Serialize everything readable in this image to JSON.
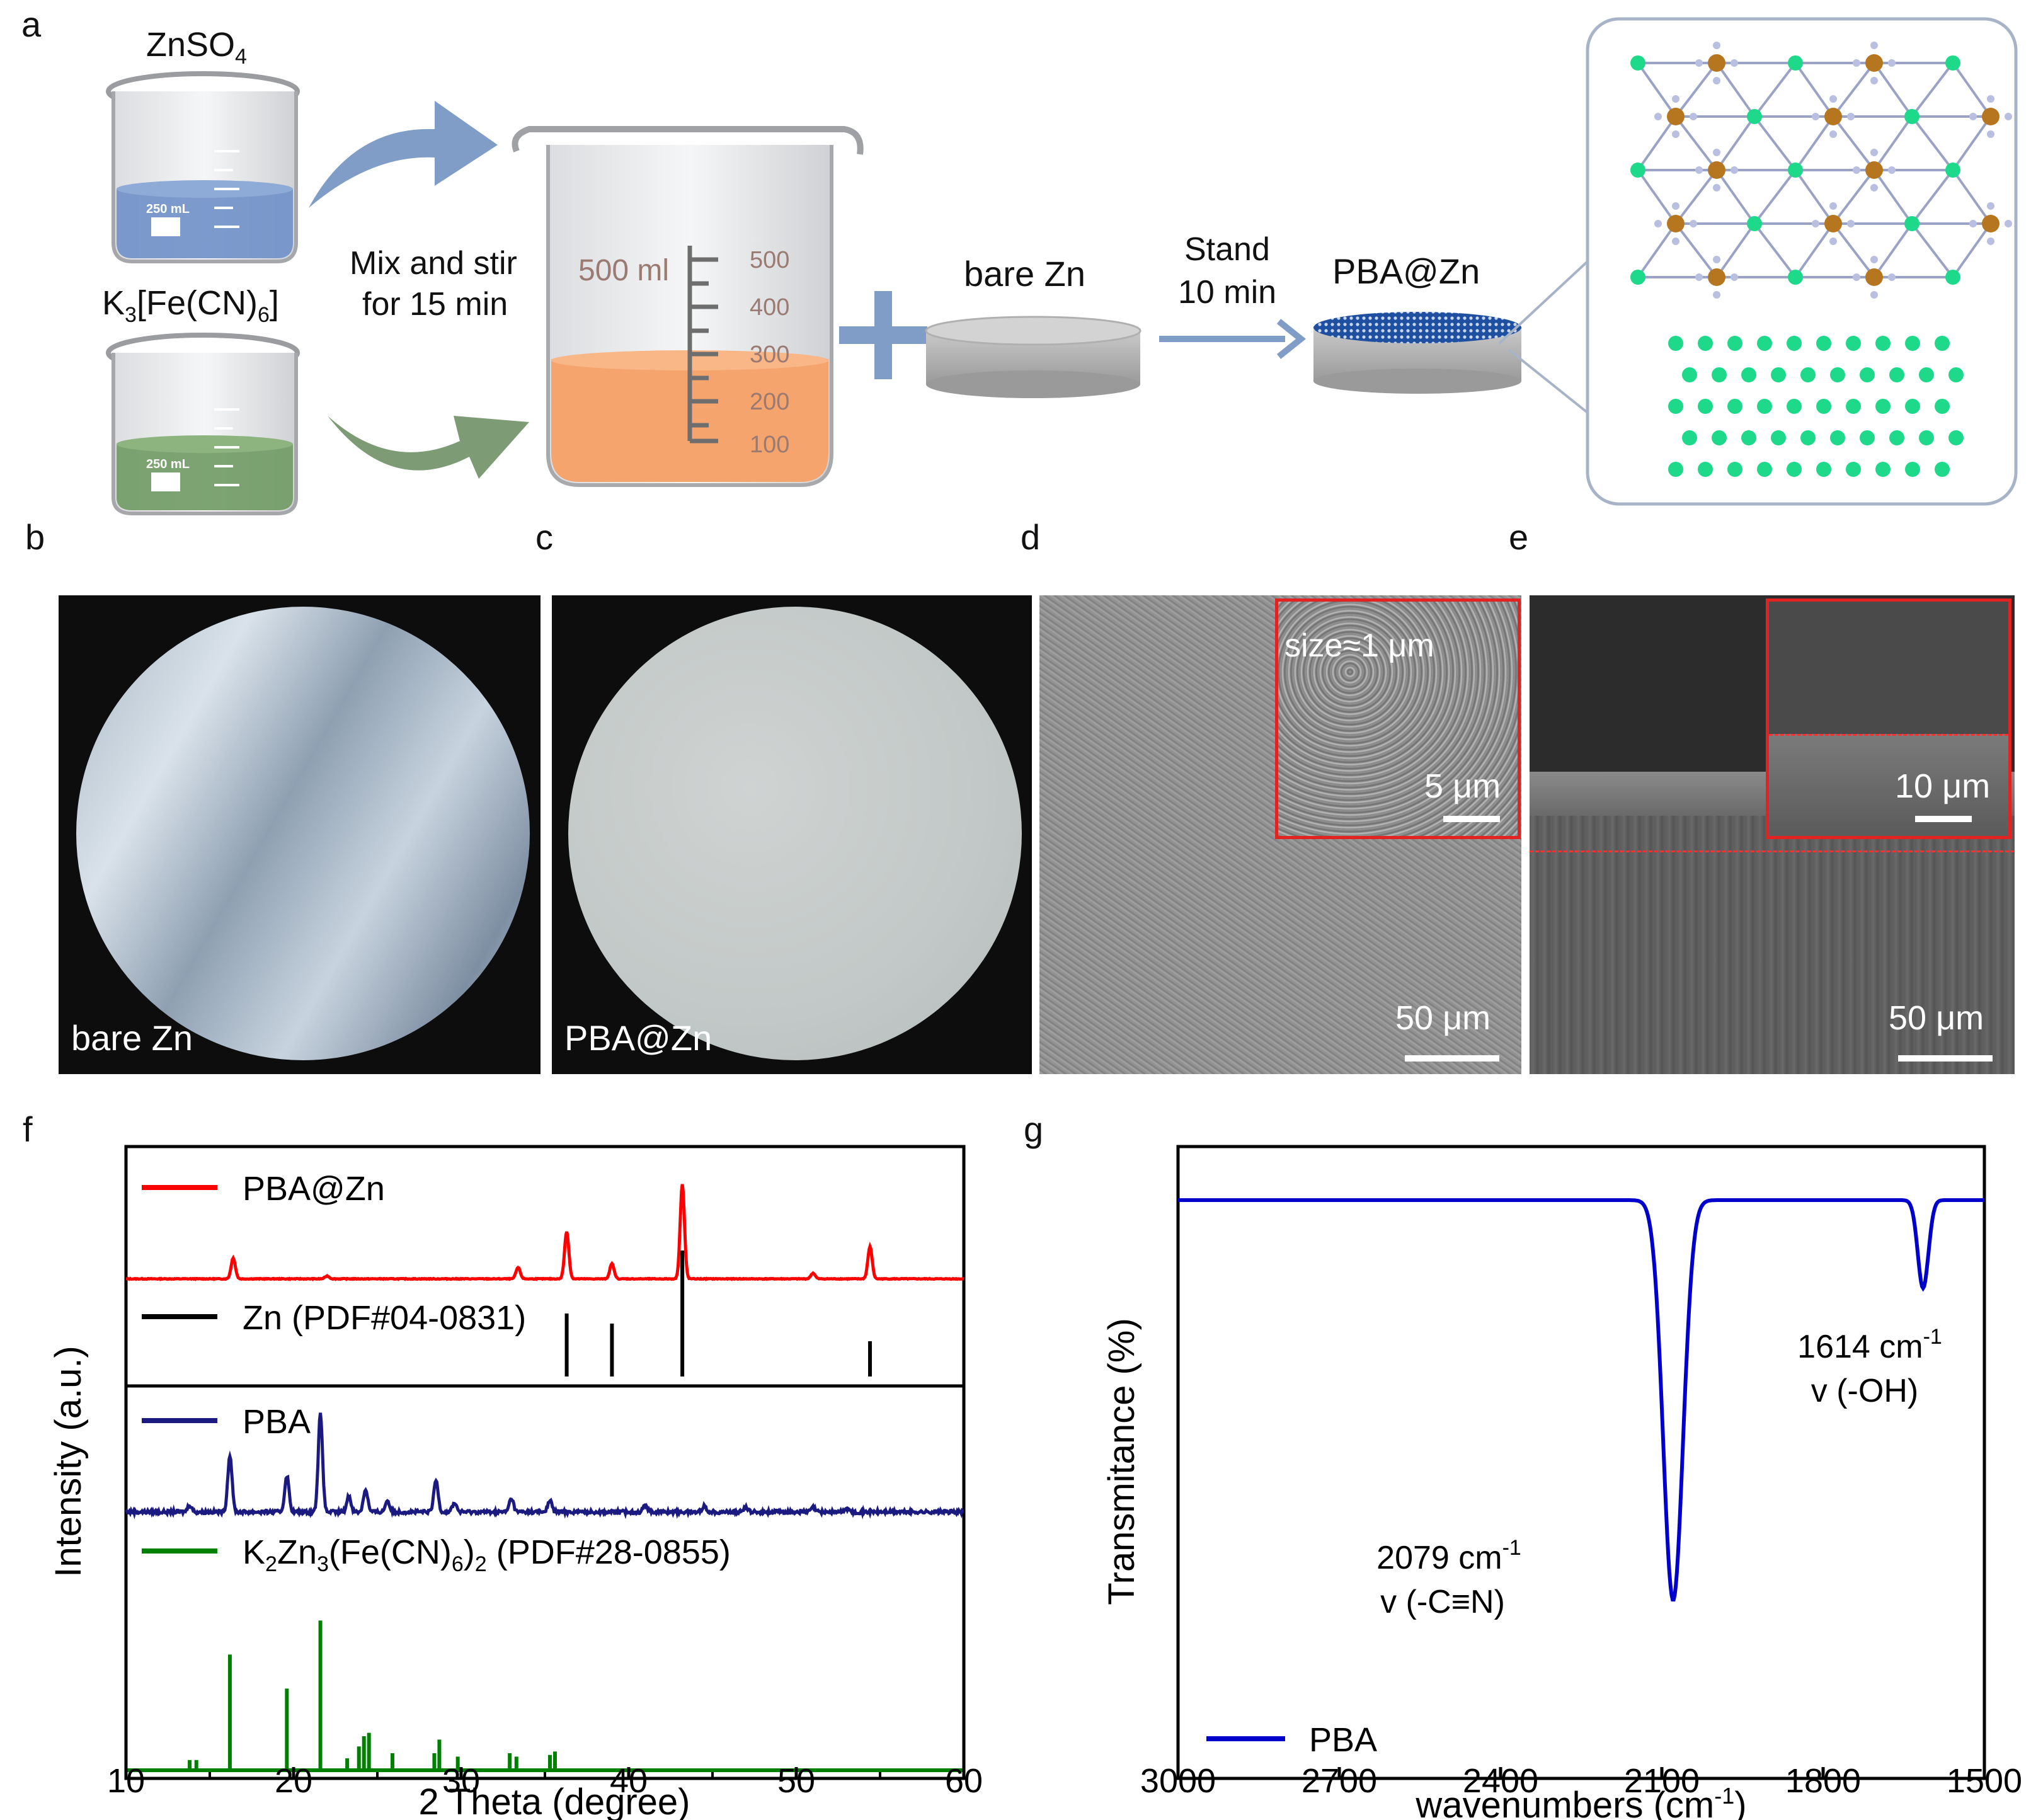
{
  "panels": {
    "a": "a",
    "b": "b",
    "c": "c",
    "d": "d",
    "e": "e",
    "f": "f",
    "g": "g"
  },
  "schematic": {
    "beaker1_label": "ZnSO",
    "beaker1_sub": "4",
    "beaker2_label_pre": "K",
    "beaker2_label_sub1": "3",
    "beaker2_label_mid": "[Fe(CN)",
    "beaker2_label_sub2": "6",
    "beaker2_label_post": "]",
    "small_beaker_volume": "250 mL",
    "mix_line1": "Mix and stir",
    "mix_line2": "for 15 min",
    "big_beaker_volume": "500 ml",
    "big_beaker_ticks": [
      "500",
      "400",
      "300",
      "200",
      "100"
    ],
    "bare_zn": "bare Zn",
    "stand_line1": "Stand",
    "stand_line2": "10 min",
    "pba_zn": "PBA@Zn",
    "colors": {
      "blue_solution": "#6f90c8",
      "green_solution": "#6f9a63",
      "orange_solution": "#f6a46e",
      "arrow_blue": "#7f9dc7",
      "arrow_green": "#7d9c76",
      "zn_green": "#1fd98b",
      "fe_brown": "#b5761f"
    }
  },
  "photos": {
    "b_label": "bare Zn",
    "c_label": "PBA@Zn",
    "d_inset_text": "size≈1 μm",
    "d_inset_scale": "5 μm",
    "d_scale": "50 μm",
    "e_inset_scale": "10 μm",
    "e_scale": "50 μm"
  },
  "chart_data": [
    {
      "type": "line",
      "panel": "f",
      "xlabel": "2 Theta (degree)",
      "ylabel": "Intensity (a.u.)",
      "xlim": [
        10,
        60
      ],
      "xticks": [
        "10",
        "20",
        "30",
        "40",
        "50",
        "60"
      ],
      "series": [
        {
          "name": "PBA@Zn",
          "color": "#ff0000",
          "kind": "pattern",
          "peaks": [
            [
              16.4,
              0.22
            ],
            [
              22.0,
              0.03
            ],
            [
              33.4,
              0.12
            ],
            [
              36.3,
              0.5
            ],
            [
              39.0,
              0.16
            ],
            [
              43.2,
              1.0
            ],
            [
              51.0,
              0.06
            ],
            [
              54.4,
              0.34
            ]
          ]
        },
        {
          "name": "Zn (PDF#04-0831)",
          "color": "#000000",
          "kind": "sticks",
          "peaks": [
            [
              36.3,
              0.5
            ],
            [
              39.0,
              0.42
            ],
            [
              43.2,
              1.0
            ],
            [
              54.4,
              0.28
            ]
          ]
        },
        {
          "name": "PBA",
          "color": "#1a1a80",
          "kind": "pattern",
          "peaks": [
            [
              13.8,
              0.06
            ],
            [
              16.2,
              0.5
            ],
            [
              19.6,
              0.32
            ],
            [
              21.6,
              0.86
            ],
            [
              23.3,
              0.14
            ],
            [
              24.3,
              0.2
            ],
            [
              25.6,
              0.1
            ],
            [
              28.5,
              0.28
            ],
            [
              29.6,
              0.08
            ],
            [
              33.0,
              0.12
            ],
            [
              35.3,
              0.1
            ],
            [
              41.0,
              0.06
            ],
            [
              44.5,
              0.05
            ],
            [
              47.0,
              0.04
            ],
            [
              51.0,
              0.04
            ],
            [
              53.0,
              0.03
            ]
          ]
        },
        {
          "name_parts": {
            "pre": "K",
            "s1": "2",
            "mid1": "Zn",
            "s2": "3",
            "mid2": "(Fe(CN)",
            "s3": "6",
            "mid3": ")",
            "s4": "2",
            "post": " (PDF#28-0855)"
          },
          "color": "#008000",
          "kind": "sticks",
          "peaks": [
            [
              13.8,
              0.06
            ],
            [
              14.2,
              0.06
            ],
            [
              16.2,
              0.68
            ],
            [
              19.6,
              0.48
            ],
            [
              21.6,
              0.88
            ],
            [
              23.2,
              0.07
            ],
            [
              23.9,
              0.14
            ],
            [
              24.2,
              0.2
            ],
            [
              24.5,
              0.22
            ],
            [
              25.9,
              0.1
            ],
            [
              28.4,
              0.1
            ],
            [
              28.7,
              0.18
            ],
            [
              29.8,
              0.08
            ],
            [
              32.9,
              0.1
            ],
            [
              33.3,
              0.08
            ],
            [
              35.3,
              0.09
            ],
            [
              35.6,
              0.11
            ]
          ]
        }
      ]
    },
    {
      "type": "line",
      "panel": "g",
      "xlabel_pre": "wavenumbers (cm",
      "xlabel_sup": "-1",
      "xlabel_post": ")",
      "ylabel": "Transmitance (%)",
      "xlim": [
        3000,
        1500
      ],
      "xticks": [
        "3000",
        "2700",
        "2400",
        "2100",
        "1800",
        "1500"
      ],
      "series": [
        {
          "name": "PBA",
          "color": "#0000cc",
          "dips": [
            [
              2079,
              1.0,
              26
            ],
            [
              1614,
              0.22,
              14
            ]
          ]
        }
      ],
      "annotations": [
        {
          "value": "2079 cm",
          "sup": "-1",
          "mode": "v (-C≡N)"
        },
        {
          "value": "1614 cm",
          "sup": "-1",
          "mode": "v (-OH)"
        }
      ]
    }
  ]
}
